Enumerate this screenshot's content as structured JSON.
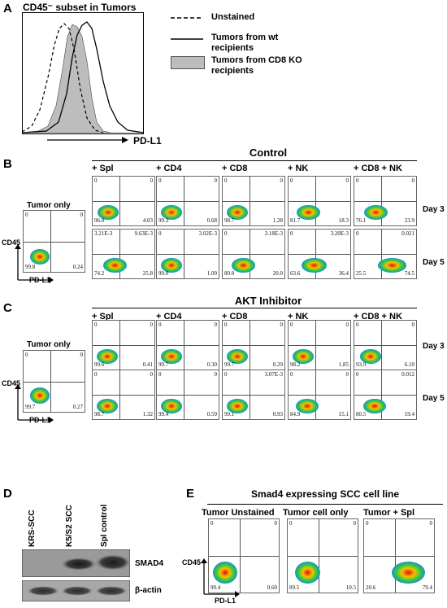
{
  "panel_a": {
    "label": "A",
    "title": "CD45⁻ subset in Tumors",
    "xaxis": "PD-L1",
    "legend": [
      {
        "name": "Unstained",
        "style": "dashed"
      },
      {
        "name": "Tumors from wt recipients",
        "style": "solid"
      },
      {
        "name": "Tumors from CD8 KO recipients",
        "style": "filled-gray"
      }
    ]
  },
  "panel_b": {
    "label": "B",
    "section_title": "Control",
    "tumor_only_title": "Tumor only",
    "ylabel": "CD45",
    "xlabel": "PD-L1",
    "tumor_only": {
      "ul": "0",
      "ur": "0",
      "ll": "99.8",
      "lr": "0.24"
    },
    "columns": [
      "+ Spl",
      "+ CD4",
      "+ CD8",
      "+ NK",
      "+ CD8 + NK"
    ],
    "days": [
      "Day 3",
      "Day 5"
    ],
    "rows": [
      [
        {
          "ul": "0",
          "ur": "0",
          "ll": "96.0",
          "lr": "4.03"
        },
        {
          "ul": "0",
          "ur": "0",
          "ll": "99.3",
          "lr": "0.68"
        },
        {
          "ul": "0",
          "ur": "0",
          "ll": "98.7",
          "lr": "1.28"
        },
        {
          "ul": "0",
          "ur": "0",
          "ll": "81.7",
          "lr": "18.3"
        },
        {
          "ul": "0",
          "ur": "0",
          "ll": "76.1",
          "lr": "23.9"
        }
      ],
      [
        {
          "ul": "3.21E-3",
          "ur": "9.63E-3",
          "ll": "74.2",
          "lr": "25.8"
        },
        {
          "ul": "0",
          "ur": "3.02E-3",
          "ll": "99.0",
          "lr": "1.00"
        },
        {
          "ul": "0",
          "ur": "3.18E-3",
          "ll": "80.0",
          "lr": "20.0"
        },
        {
          "ul": "0",
          "ur": "3.20E-3",
          "ll": "63.6",
          "lr": "36.4"
        },
        {
          "ul": "0",
          "ur": "0.021",
          "ll": "25.5",
          "lr": "74.5"
        }
      ]
    ]
  },
  "panel_c": {
    "label": "C",
    "section_title": "AKT Inhibitor",
    "tumor_only_title": "Tumor only",
    "ylabel": "CD45",
    "xlabel": "PD-L1",
    "tumor_only": {
      "ul": "0",
      "ur": "0",
      "ll": "99.7",
      "lr": "0.27"
    },
    "columns": [
      "+ Spl",
      "+ CD4",
      "+ CD8",
      "+ NK",
      "+ CD8 + NK"
    ],
    "days": [
      "Day 3",
      "Day 5"
    ],
    "rows": [
      [
        {
          "ul": "0",
          "ur": "0",
          "ll": "99.6",
          "lr": "0.41"
        },
        {
          "ul": "0",
          "ur": "0",
          "ll": "99.7",
          "lr": "0.30"
        },
        {
          "ul": "0",
          "ur": "0",
          "ll": "99.7",
          "lr": "0.29"
        },
        {
          "ul": "0",
          "ur": "0",
          "ll": "98.2",
          "lr": "1.85"
        },
        {
          "ul": "0",
          "ur": "0",
          "ll": "93.9",
          "lr": "6.10"
        }
      ],
      [
        {
          "ul": "0",
          "ur": "0",
          "ll": "98.7",
          "lr": "1.32"
        },
        {
          "ul": "0",
          "ur": "0",
          "ll": "99.4",
          "lr": "0.59"
        },
        {
          "ul": "0",
          "ur": "3.07E-3",
          "ll": "99.1",
          "lr": "0.93"
        },
        {
          "ul": "0",
          "ur": "0",
          "ll": "84.9",
          "lr": "15.1"
        },
        {
          "ul": "0",
          "ur": "0.012",
          "ll": "80.5",
          "lr": "19.4"
        }
      ]
    ]
  },
  "panel_d": {
    "label": "D",
    "lanes": [
      "KRS-SCC",
      "K5/S2 SCC",
      "Spl control"
    ],
    "bands": [
      "SMAD4",
      "β-actin"
    ]
  },
  "panel_e": {
    "label": "E",
    "section_title": "Smad4 expressing SCC cell line",
    "ylabel": "CD45",
    "xlabel": "PD-L1",
    "columns": [
      "Tumor Unstained",
      "Tumor cell only",
      "Tumor + Spl"
    ],
    "plots": [
      {
        "ul": "0",
        "ur": "0",
        "ll": "99.4",
        "lr": "0.60"
      },
      {
        "ul": "0",
        "ur": "0",
        "ll": "89.5",
        "lr": "10.5"
      },
      {
        "ul": "0",
        "ur": "0",
        "ll": "20.6",
        "lr": "79.4"
      }
    ]
  }
}
